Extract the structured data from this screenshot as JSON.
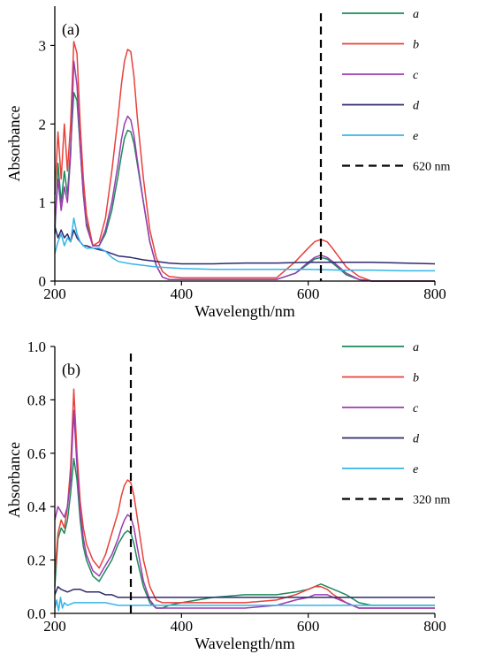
{
  "chart_data": [
    {
      "type": "line",
      "panel_label": "(a)",
      "xlabel": "Wavelength/nm",
      "ylabel": "Absorbance",
      "xlim": [
        200,
        800
      ],
      "ylim": [
        0,
        3.5
      ],
      "xticks": [
        200,
        400,
        600,
        800
      ],
      "yticks": [
        0,
        1,
        2,
        3
      ],
      "grid": false,
      "legend_position": "right",
      "reference_line": {
        "x": 620,
        "label": "620 nm",
        "style": "dashed",
        "color": "#000000"
      },
      "series": [
        {
          "name": "a",
          "color": "#1b8a5a",
          "x": [
            200,
            205,
            210,
            215,
            220,
            225,
            230,
            235,
            240,
            245,
            250,
            260,
            270,
            280,
            290,
            300,
            305,
            310,
            315,
            320,
            325,
            330,
            340,
            350,
            360,
            370,
            380,
            400,
            450,
            500,
            550,
            580,
            600,
            610,
            620,
            630,
            640,
            660,
            680,
            700,
            750,
            800
          ],
          "y": [
            0.6,
            1.5,
            1.0,
            1.4,
            1.1,
            1.7,
            2.4,
            2.3,
            1.7,
            1.1,
            0.75,
            0.45,
            0.45,
            0.6,
            0.9,
            1.35,
            1.6,
            1.82,
            1.92,
            1.9,
            1.75,
            1.5,
            1.0,
            0.5,
            0.2,
            0.05,
            0.02,
            0.02,
            0.02,
            0.02,
            0.02,
            0.1,
            0.22,
            0.28,
            0.3,
            0.28,
            0.22,
            0.08,
            0.02,
            0.0,
            0.0,
            0.0
          ]
        },
        {
          "name": "b",
          "color": "#e8413a",
          "x": [
            200,
            205,
            210,
            215,
            220,
            225,
            230,
            235,
            240,
            245,
            250,
            260,
            270,
            280,
            290,
            300,
            305,
            310,
            315,
            320,
            325,
            330,
            340,
            350,
            360,
            370,
            380,
            400,
            450,
            500,
            550,
            580,
            600,
            610,
            620,
            630,
            640,
            660,
            680,
            700,
            750,
            800
          ],
          "y": [
            1.1,
            1.9,
            1.3,
            2.0,
            1.4,
            2.0,
            3.05,
            2.9,
            2.0,
            1.3,
            0.85,
            0.45,
            0.5,
            0.8,
            1.4,
            2.1,
            2.5,
            2.8,
            2.95,
            2.92,
            2.6,
            2.1,
            1.3,
            0.65,
            0.3,
            0.12,
            0.06,
            0.04,
            0.04,
            0.04,
            0.04,
            0.25,
            0.42,
            0.5,
            0.53,
            0.5,
            0.4,
            0.18,
            0.06,
            0.0,
            0.0,
            0.0
          ]
        },
        {
          "name": "c",
          "color": "#9b3bb0",
          "x": [
            200,
            205,
            210,
            215,
            220,
            225,
            230,
            235,
            240,
            245,
            250,
            260,
            270,
            280,
            290,
            300,
            305,
            310,
            315,
            320,
            325,
            330,
            340,
            350,
            360,
            370,
            380,
            400,
            450,
            500,
            550,
            580,
            600,
            610,
            620,
            630,
            640,
            660,
            680,
            700,
            750,
            800
          ],
          "y": [
            0.7,
            1.3,
            0.9,
            1.2,
            1.0,
            1.6,
            2.8,
            2.5,
            1.7,
            1.1,
            0.7,
            0.45,
            0.45,
            0.65,
            1.0,
            1.5,
            1.8,
            2.0,
            2.1,
            2.05,
            1.85,
            1.55,
            1.0,
            0.5,
            0.2,
            0.05,
            0.02,
            0.02,
            0.02,
            0.02,
            0.02,
            0.1,
            0.24,
            0.3,
            0.33,
            0.3,
            0.24,
            0.1,
            0.02,
            0.0,
            0.0,
            0.0
          ]
        },
        {
          "name": "d",
          "color": "#2e2a6e",
          "x": [
            200,
            205,
            210,
            215,
            220,
            225,
            230,
            235,
            240,
            245,
            250,
            260,
            270,
            280,
            290,
            300,
            320,
            340,
            360,
            380,
            400,
            450,
            500,
            550,
            600,
            650,
            700,
            750,
            800
          ],
          "y": [
            0.7,
            0.55,
            0.65,
            0.55,
            0.6,
            0.5,
            0.65,
            0.55,
            0.5,
            0.45,
            0.45,
            0.42,
            0.4,
            0.38,
            0.35,
            0.32,
            0.3,
            0.27,
            0.25,
            0.23,
            0.22,
            0.22,
            0.23,
            0.23,
            0.24,
            0.24,
            0.24,
            0.23,
            0.22
          ]
        },
        {
          "name": "e",
          "color": "#35b4e8",
          "x": [
            200,
            205,
            210,
            215,
            220,
            225,
            230,
            235,
            240,
            245,
            250,
            260,
            270,
            280,
            290,
            300,
            320,
            340,
            360,
            380,
            400,
            450,
            500,
            550,
            600,
            650,
            700,
            750,
            800
          ],
          "y": [
            0.35,
            0.5,
            0.6,
            0.45,
            0.55,
            0.5,
            0.8,
            0.6,
            0.5,
            0.45,
            0.42,
            0.42,
            0.42,
            0.38,
            0.3,
            0.25,
            0.22,
            0.2,
            0.18,
            0.17,
            0.16,
            0.15,
            0.15,
            0.15,
            0.15,
            0.14,
            0.14,
            0.13,
            0.13
          ]
        }
      ]
    },
    {
      "type": "line",
      "panel_label": "(b)",
      "xlabel": "Wavelength/nm",
      "ylabel": "Absorbance",
      "xlim": [
        200,
        800
      ],
      "ylim": [
        0,
        1.0
      ],
      "xticks": [
        200,
        400,
        600,
        800
      ],
      "yticks": [
        0,
        0.2,
        0.4,
        0.6,
        0.8,
        1.0
      ],
      "grid": false,
      "legend_position": "right",
      "reference_line": {
        "x": 320,
        "label": "320 nm",
        "style": "dashed",
        "color": "#000000"
      },
      "series": [
        {
          "name": "a",
          "color": "#1b8a5a",
          "x": [
            200,
            205,
            210,
            215,
            220,
            225,
            230,
            235,
            240,
            245,
            250,
            260,
            270,
            280,
            290,
            300,
            305,
            310,
            315,
            320,
            325,
            330,
            340,
            350,
            360,
            370,
            380,
            400,
            450,
            500,
            550,
            580,
            600,
            610,
            620,
            630,
            640,
            660,
            680,
            700,
            750,
            800
          ],
          "y": [
            0.1,
            0.28,
            0.32,
            0.3,
            0.35,
            0.45,
            0.58,
            0.5,
            0.35,
            0.25,
            0.2,
            0.14,
            0.12,
            0.16,
            0.2,
            0.26,
            0.28,
            0.3,
            0.31,
            0.3,
            0.26,
            0.2,
            0.1,
            0.04,
            0.02,
            0.02,
            0.03,
            0.04,
            0.06,
            0.07,
            0.07,
            0.08,
            0.09,
            0.1,
            0.11,
            0.1,
            0.09,
            0.07,
            0.04,
            0.03,
            0.03,
            0.03
          ]
        },
        {
          "name": "b",
          "color": "#e8413a",
          "x": [
            200,
            205,
            210,
            215,
            220,
            225,
            230,
            235,
            240,
            245,
            250,
            260,
            270,
            280,
            290,
            300,
            305,
            310,
            315,
            320,
            325,
            330,
            340,
            350,
            360,
            370,
            380,
            400,
            450,
            500,
            550,
            580,
            600,
            610,
            620,
            630,
            640,
            660,
            680,
            700,
            750,
            800
          ],
          "y": [
            0.15,
            0.3,
            0.35,
            0.32,
            0.4,
            0.55,
            0.84,
            0.6,
            0.42,
            0.32,
            0.26,
            0.2,
            0.17,
            0.22,
            0.3,
            0.38,
            0.44,
            0.48,
            0.5,
            0.49,
            0.44,
            0.36,
            0.2,
            0.1,
            0.05,
            0.04,
            0.04,
            0.04,
            0.04,
            0.04,
            0.05,
            0.07,
            0.09,
            0.1,
            0.1,
            0.09,
            0.07,
            0.04,
            0.02,
            0.02,
            0.02,
            0.02
          ]
        },
        {
          "name": "c",
          "color": "#9b3bb0",
          "x": [
            200,
            205,
            210,
            215,
            220,
            225,
            230,
            235,
            240,
            245,
            250,
            260,
            270,
            280,
            290,
            300,
            305,
            310,
            315,
            320,
            325,
            330,
            340,
            350,
            360,
            370,
            380,
            400,
            450,
            500,
            550,
            580,
            600,
            610,
            620,
            630,
            640,
            660,
            680,
            700,
            750,
            800
          ],
          "y": [
            0.35,
            0.4,
            0.38,
            0.36,
            0.4,
            0.5,
            0.76,
            0.55,
            0.38,
            0.28,
            0.22,
            0.16,
            0.14,
            0.18,
            0.22,
            0.28,
            0.32,
            0.35,
            0.37,
            0.36,
            0.32,
            0.25,
            0.12,
            0.05,
            0.02,
            0.02,
            0.02,
            0.02,
            0.02,
            0.02,
            0.03,
            0.05,
            0.06,
            0.07,
            0.07,
            0.07,
            0.06,
            0.04,
            0.02,
            0.02,
            0.02,
            0.02
          ]
        },
        {
          "name": "d",
          "color": "#2e2a6e",
          "x": [
            200,
            205,
            210,
            220,
            230,
            240,
            250,
            260,
            270,
            280,
            290,
            300,
            320,
            340,
            360,
            380,
            400,
            450,
            500,
            550,
            600,
            650,
            700,
            750,
            800
          ],
          "y": [
            0.07,
            0.1,
            0.09,
            0.08,
            0.09,
            0.09,
            0.08,
            0.08,
            0.08,
            0.07,
            0.07,
            0.06,
            0.06,
            0.06,
            0.06,
            0.06,
            0.06,
            0.06,
            0.06,
            0.06,
            0.06,
            0.06,
            0.06,
            0.06,
            0.06
          ]
        },
        {
          "name": "e",
          "color": "#35b4e8",
          "x": [
            200,
            203,
            206,
            209,
            212,
            215,
            220,
            230,
            240,
            250,
            260,
            280,
            300,
            320,
            340,
            360,
            380,
            400,
            450,
            500,
            550,
            600,
            650,
            700,
            750,
            800
          ],
          "y": [
            0.02,
            0.05,
            0.01,
            0.06,
            0.02,
            0.04,
            0.03,
            0.04,
            0.04,
            0.04,
            0.04,
            0.04,
            0.03,
            0.03,
            0.03,
            0.03,
            0.03,
            0.03,
            0.03,
            0.03,
            0.03,
            0.03,
            0.03,
            0.03,
            0.03,
            0.03
          ]
        }
      ]
    }
  ]
}
